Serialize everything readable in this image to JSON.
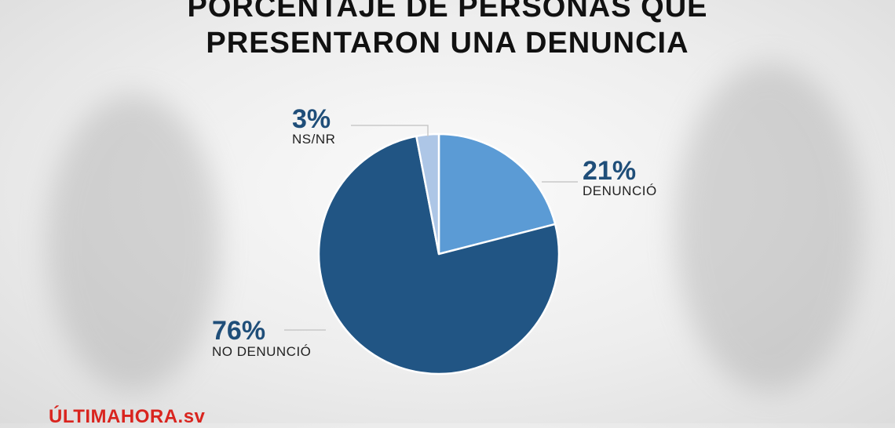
{
  "header": {
    "title_line1": "PORCENTAJE DE PERSONAS QUE",
    "title_line2": "PRESENTARON UNA DENUNCIA"
  },
  "brand": {
    "logo_part1": "ÚLTIMAHORA",
    "logo_part2": ".sv",
    "color": "#d9241e"
  },
  "chart_data": {
    "type": "pie",
    "title": "PORCENTAJE DE PERSONAS QUE PRESENTARON UNA DENUNCIA",
    "start_angle_deg": 0,
    "direction": "clockwise",
    "slices": [
      {
        "label": "DENUNCIÓ",
        "value": 21,
        "value_label": "21%",
        "color": "#5b9bd5"
      },
      {
        "label": "NO DENUNCIÓ",
        "value": 76,
        "value_label": "76%",
        "color": "#215584"
      },
      {
        "label": "NS/NR",
        "value": 3,
        "value_label": "3%",
        "color": "#adc6e6"
      }
    ],
    "label_color": "#1f4e79"
  }
}
